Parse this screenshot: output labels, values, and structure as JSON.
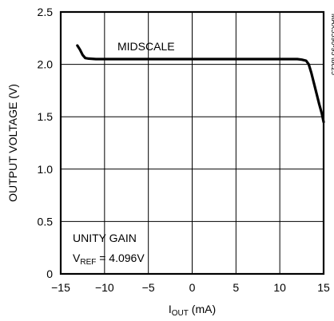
{
  "chart_data": {
    "type": "line",
    "xlabel": {
      "main": "I",
      "sub": "OUT",
      "rest": " (mA)"
    },
    "ylabel": "OUTPUT VOLTAGE (V)",
    "xlim": [
      -15,
      15
    ],
    "ylim": [
      0,
      2.5
    ],
    "x_ticks": [
      -15,
      -10,
      -5,
      0,
      5,
      10,
      15
    ],
    "x_tick_labels": [
      "−15",
      "−10",
      "−5",
      "0",
      "5",
      "10",
      "15"
    ],
    "y_ticks": [
      0,
      0.5,
      1.0,
      1.5,
      2.0,
      2.5
    ],
    "y_tick_labels": [
      "0",
      "0.5",
      "1.0",
      "1.5",
      "2.0",
      "2.5"
    ],
    "grid": true,
    "series": [
      {
        "name": "MIDSCALE",
        "x": [
          -13.1,
          -12.8,
          -12.5,
          -12.2,
          -11.8,
          -11,
          -8,
          -4,
          0,
          4,
          8,
          11,
          12,
          12.5,
          13,
          13.3,
          13.6,
          13.9,
          14.2,
          14.5,
          14.8,
          15
        ],
        "y": [
          2.18,
          2.14,
          2.09,
          2.06,
          2.055,
          2.05,
          2.05,
          2.05,
          2.05,
          2.05,
          2.05,
          2.05,
          2.05,
          2.045,
          2.035,
          2.0,
          1.92,
          1.82,
          1.72,
          1.62,
          1.53,
          1.45
        ]
      }
    ],
    "annotations": {
      "series_label": "MIDSCALE",
      "gain": "UNITY GAIN",
      "vref": {
        "main": "V",
        "sub": "REF",
        "rest": " = 4.096V"
      },
      "side_id": "MAX5590-95 toc25"
    }
  }
}
